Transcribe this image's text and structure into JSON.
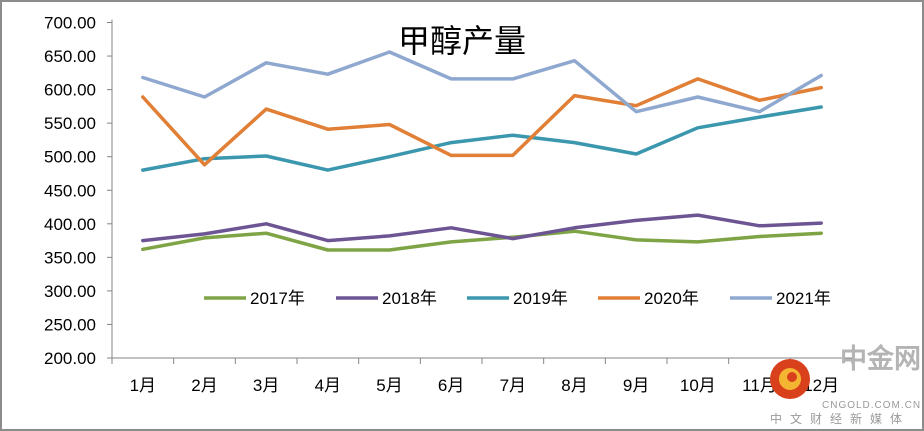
{
  "chart_data": {
    "type": "line",
    "title": "甲醇产量",
    "xlabel": "",
    "ylabel": "",
    "categories": [
      "1月",
      "2月",
      "3月",
      "4月",
      "5月",
      "6月",
      "7月",
      "8月",
      "9月",
      "10月",
      "11月",
      "12月"
    ],
    "ylim": [
      200,
      700
    ],
    "yticks": [
      "200.00",
      "250.00",
      "300.00",
      "350.00",
      "400.00",
      "450.00",
      "500.00",
      "550.00",
      "600.00",
      "650.00",
      "700.00"
    ],
    "legend_position": "inside-bottom",
    "grid": false,
    "series": [
      {
        "name": "2017年",
        "color": "#7ea446",
        "values": [
          362,
          379,
          386,
          361,
          361,
          373,
          380,
          389,
          376,
          373,
          381,
          386
        ]
      },
      {
        "name": "2018年",
        "color": "#6d5593",
        "values": [
          375,
          385,
          400,
          375,
          382,
          394,
          378,
          394,
          405,
          413,
          397,
          401
        ]
      },
      {
        "name": "2019年",
        "color": "#3b97ad",
        "values": [
          480,
          497,
          501,
          480,
          500,
          521,
          532,
          521,
          504,
          543,
          559,
          574
        ]
      },
      {
        "name": "2020年",
        "color": "#e07f35",
        "values": [
          589,
          488,
          571,
          541,
          548,
          502,
          502,
          591,
          576,
          616,
          584,
          603
        ]
      },
      {
        "name": "2021年",
        "color": "#8fa8cf",
        "values": [
          618,
          589,
          640,
          623,
          656,
          616,
          616,
          643,
          567,
          589,
          567,
          621
        ]
      }
    ]
  },
  "watermark": {
    "brand": "中金网",
    "domain": "CNGOLD.COM.CN",
    "tagline": "中文财经新媒体"
  }
}
